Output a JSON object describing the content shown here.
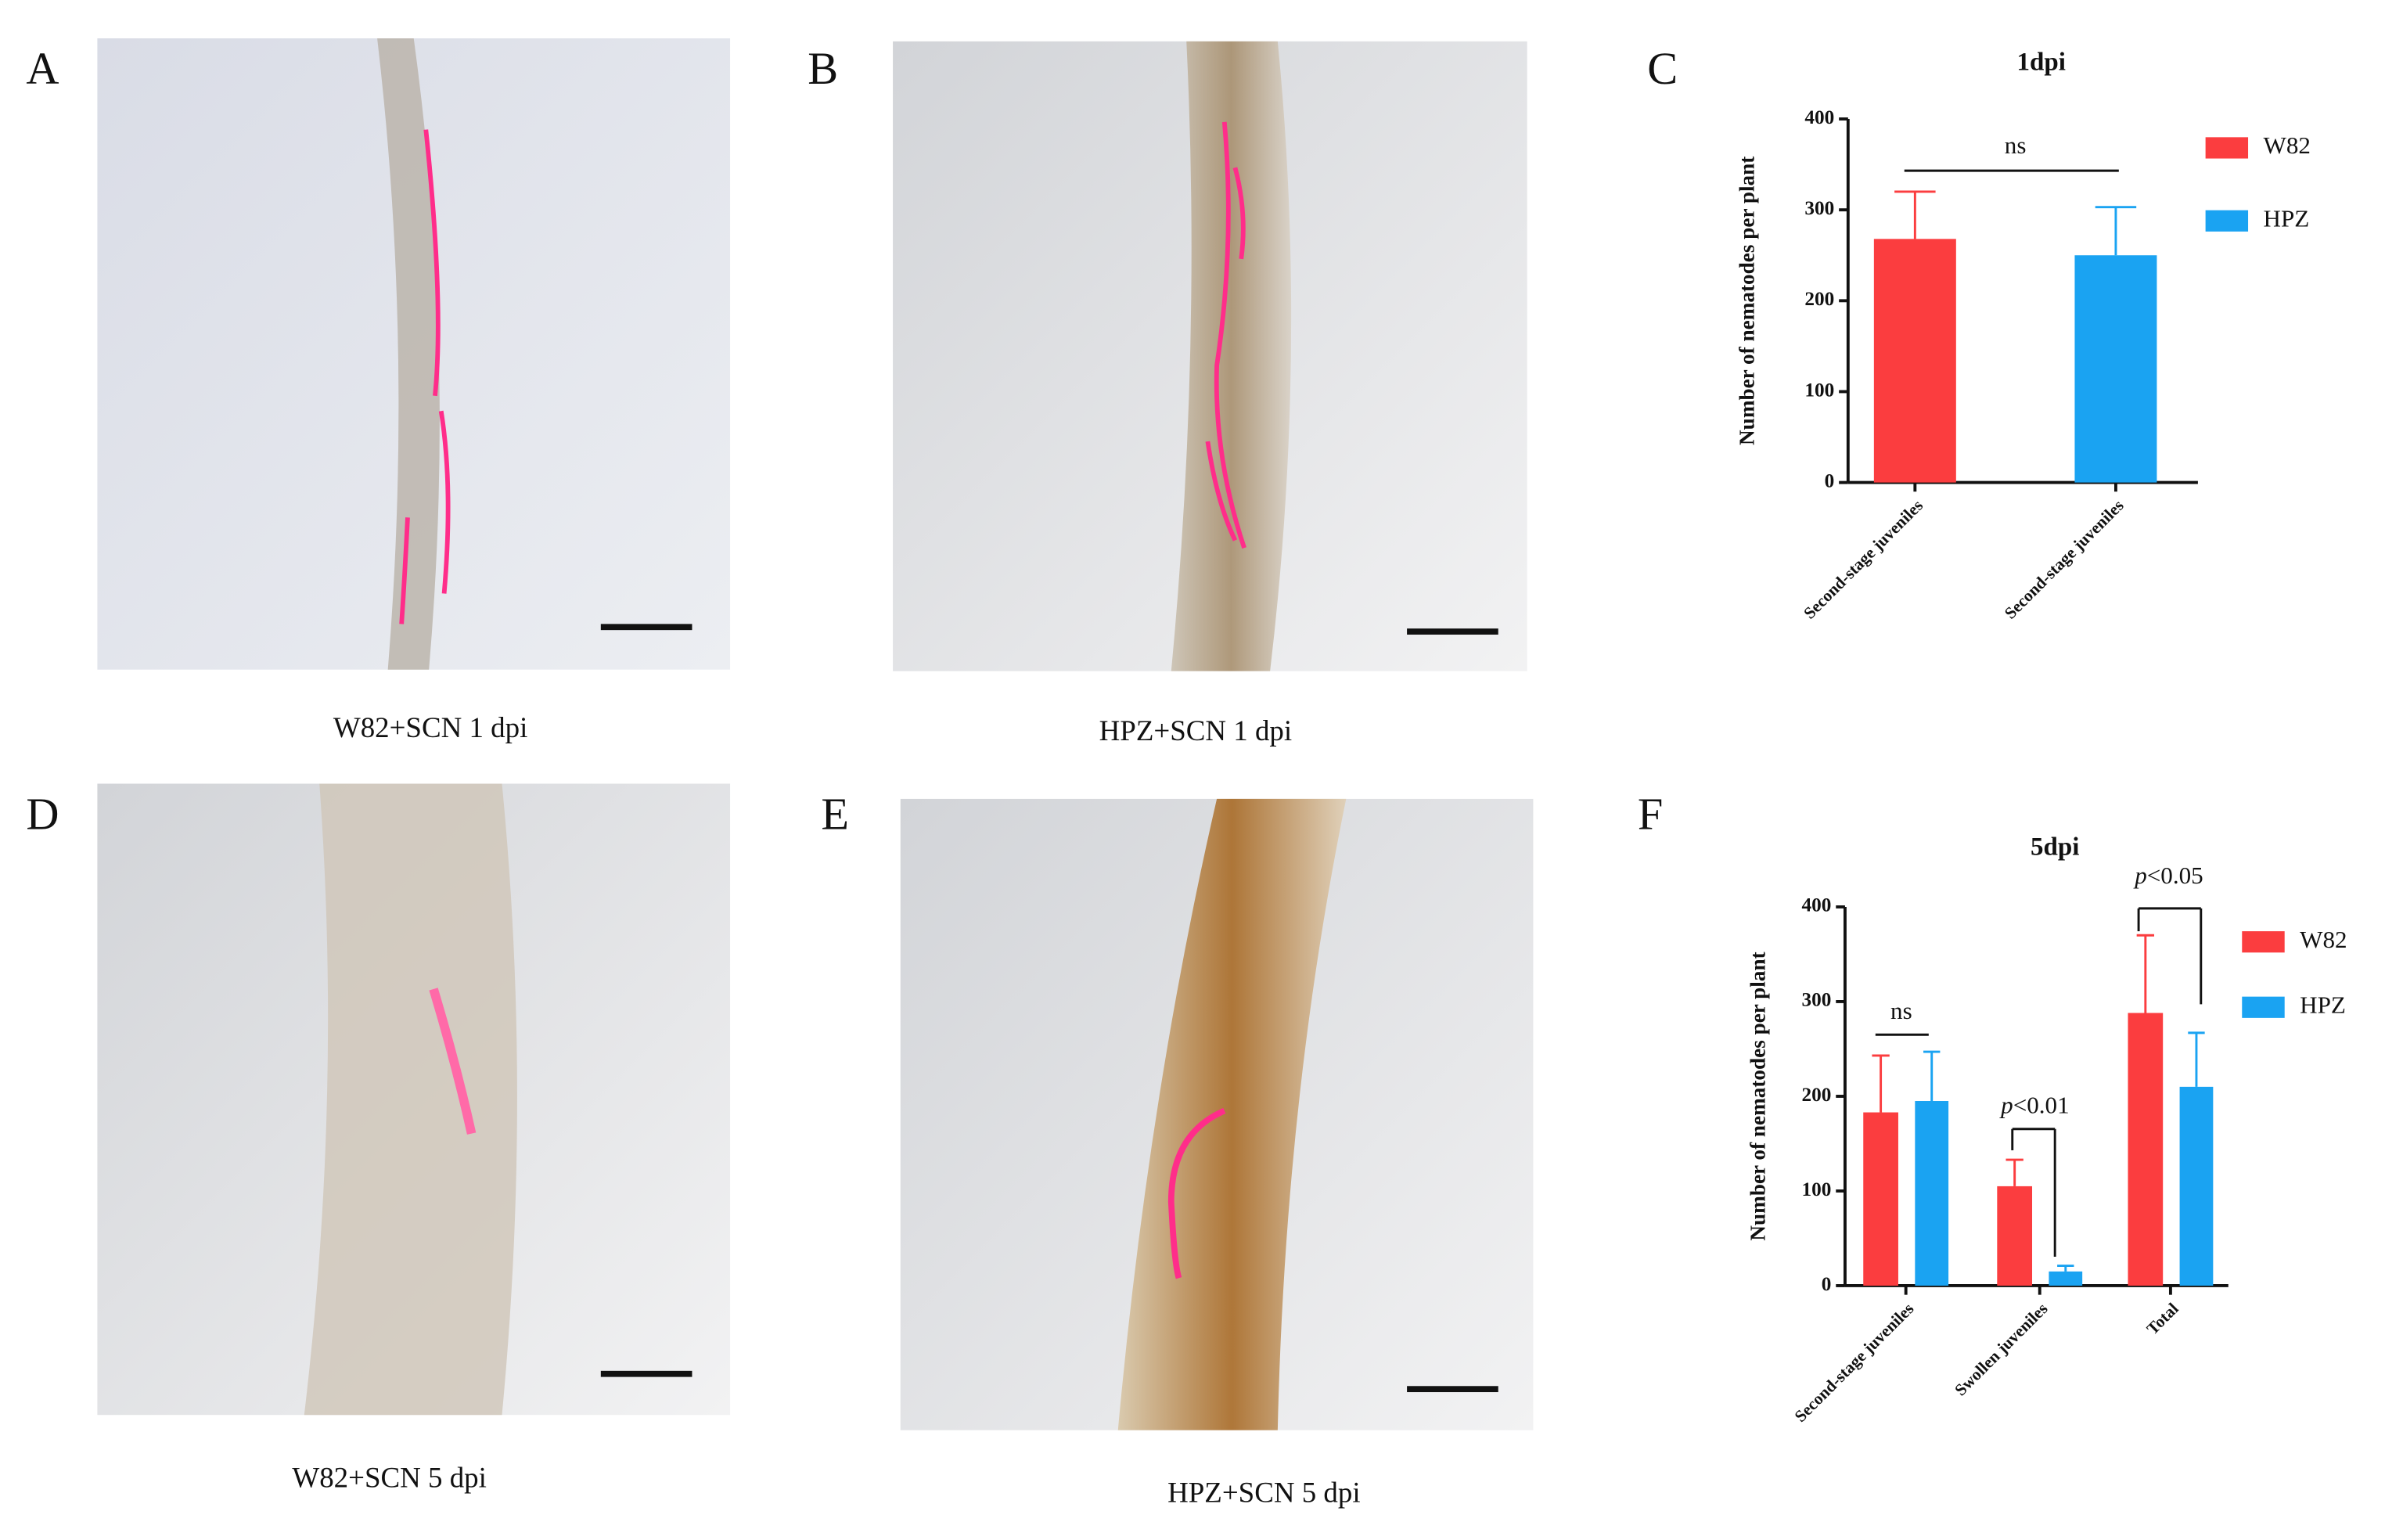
{
  "panel_labels": [
    "A",
    "B",
    "C",
    "D",
    "E",
    "F"
  ],
  "captions": [
    "W82+SCN 1 dpi",
    "HPZ+SCN 1 dpi",
    "W82+SCN 5 dpi",
    "HPZ+SCN 5 dpi"
  ],
  "chart_data": [
    {
      "type": "bar",
      "title": "1dpi",
      "y_label": "Number of nematodes per plant",
      "categories": [
        "Second-stage juveniles",
        "Second-stage juveniles"
      ],
      "series": [
        {
          "name": "W82",
          "color": "#fb3d3f",
          "values": [
            268,
            null
          ],
          "errors": [
            52,
            null
          ]
        },
        {
          "name": "HPZ",
          "color": "#1aa3f2",
          "values": [
            null,
            250
          ],
          "errors": [
            null,
            53
          ]
        }
      ],
      "ylim": [
        0,
        400
      ],
      "yticks": [
        0,
        100,
        200,
        300,
        400
      ],
      "annotations": [
        "ns"
      ]
    },
    {
      "type": "bar",
      "title": "5dpi",
      "y_label": "Number of nematodes per plant",
      "categories": [
        "Second-stage juveniles",
        "Swollen juveniles",
        "Total"
      ],
      "series": [
        {
          "name": "W82",
          "color": "#fb3d3f",
          "values": [
            183,
            105,
            288
          ],
          "errors": [
            60,
            28,
            82
          ]
        },
        {
          "name": "HPZ",
          "color": "#1aa3f2",
          "values": [
            195,
            15,
            210
          ],
          "errors": [
            52,
            6,
            57
          ]
        }
      ],
      "ylim": [
        0,
        400
      ],
      "yticks": [
        0,
        100,
        200,
        300,
        400
      ],
      "annotations": [
        "ns",
        "p<0.01",
        "p<0.05"
      ]
    }
  ]
}
